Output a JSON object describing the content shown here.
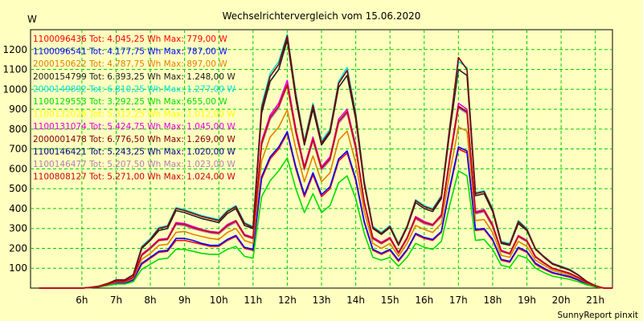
{
  "chart_data": {
    "type": "line",
    "title": "Wechselrichtervergleich vom 15.06.2020",
    "ylabel": "W",
    "xlabel": "",
    "xlim": [
      4.5,
      21.5
    ],
    "ylim": [
      0,
      1300
    ],
    "grid": true,
    "legend_position": "top-left",
    "x_ticks": [
      {
        "v": 6,
        "label": "6h"
      },
      {
        "v": 7,
        "label": "7h"
      },
      {
        "v": 8,
        "label": "8h"
      },
      {
        "v": 9,
        "label": "9h"
      },
      {
        "v": 10,
        "label": "10h"
      },
      {
        "v": 11,
        "label": "11h"
      },
      {
        "v": 12,
        "label": "12h"
      },
      {
        "v": 13,
        "label": "13h"
      },
      {
        "v": 14,
        "label": "14h"
      },
      {
        "v": 15,
        "label": "15h"
      },
      {
        "v": 16,
        "label": "16h"
      },
      {
        "v": 17,
        "label": "17h"
      },
      {
        "v": 18,
        "label": "18h"
      },
      {
        "v": 19,
        "label": "19h"
      },
      {
        "v": 20,
        "label": "20h"
      },
      {
        "v": 21,
        "label": "21h"
      }
    ],
    "y_ticks": [
      {
        "v": 100,
        "label": "100"
      },
      {
        "v": 200,
        "label": "200"
      },
      {
        "v": 300,
        "label": "300"
      },
      {
        "v": 400,
        "label": "400"
      },
      {
        "v": 500,
        "label": "500"
      },
      {
        "v": 600,
        "label": "600"
      },
      {
        "v": 700,
        "label": "700"
      },
      {
        "v": 800,
        "label": "800"
      },
      {
        "v": 900,
        "label": "900"
      },
      {
        "v": 1000,
        "label": "1000"
      },
      {
        "v": 1100,
        "label": "1100"
      },
      {
        "v": 1200,
        "label": "1200"
      }
    ],
    "x": [
      4.75,
      5.0,
      5.25,
      5.5,
      5.75,
      6.0,
      6.25,
      6.5,
      6.75,
      7.0,
      7.25,
      7.5,
      7.75,
      8.0,
      8.25,
      8.5,
      8.75,
      9.0,
      9.25,
      9.5,
      9.75,
      10.0,
      10.25,
      10.5,
      10.75,
      11.0,
      11.25,
      11.5,
      11.75,
      12.0,
      12.25,
      12.5,
      12.75,
      13.0,
      13.25,
      13.5,
      13.75,
      14.0,
      14.25,
      14.5,
      14.75,
      15.0,
      15.25,
      15.5,
      15.75,
      16.0,
      16.25,
      16.5,
      16.75,
      17.0,
      17.25,
      17.5,
      17.75,
      18.0,
      18.25,
      18.5,
      18.75,
      19.0,
      19.25,
      19.5,
      19.75,
      20.0,
      20.25,
      20.5,
      20.75,
      21.0,
      21.25,
      21.5
    ],
    "series": [
      {
        "legend": "1100096436 Tot: 4.045,25 Wh Max: 779,00 W",
        "color": "#ff0000",
        "values": [
          0,
          0,
          0,
          0,
          0,
          0,
          3,
          7,
          14,
          25,
          25,
          40,
          120,
          150,
          180,
          185,
          240,
          240,
          230,
          220,
          210,
          210,
          240,
          260,
          200,
          190,
          550,
          650,
          700,
          779,
          600,
          460,
          570,
          460,
          500,
          640,
          680,
          540,
          330,
          190,
          170,
          190,
          135,
          190,
          270,
          250,
          240,
          280,
          500,
          700,
          680,
          290,
          295,
          240,
          140,
          130,
          200,
          180,
          120,
          95,
          75,
          65,
          55,
          40,
          20,
          8,
          0,
          0
        ]
      },
      {
        "legend": "1100096541 Tot: 4.177,75 Wh Max: 787,00 W",
        "color": "#0000ff",
        "values": [
          0,
          0,
          0,
          0,
          0,
          0,
          3,
          7,
          15,
          26,
          26,
          42,
          125,
          155,
          185,
          190,
          250,
          250,
          240,
          225,
          215,
          215,
          245,
          265,
          205,
          195,
          560,
          660,
          710,
          787,
          610,
          470,
          580,
          470,
          510,
          650,
          690,
          550,
          335,
          195,
          175,
          195,
          140,
          195,
          275,
          255,
          245,
          285,
          510,
          710,
          690,
          295,
          300,
          245,
          145,
          135,
          205,
          185,
          125,
          100,
          78,
          68,
          58,
          42,
          21,
          8,
          0,
          0
        ]
      },
      {
        "legend": "2000150622 Tot: 4.787,75 Wh Max: 897,00 W",
        "color": "#e08000",
        "values": [
          0,
          0,
          0,
          0,
          0,
          0,
          3,
          8,
          17,
          30,
          30,
          48,
          145,
          175,
          215,
          220,
          280,
          285,
          270,
          260,
          250,
          245,
          280,
          300,
          240,
          225,
          640,
          760,
          810,
          897,
          700,
          535,
          665,
          535,
          580,
          745,
          790,
          630,
          385,
          225,
          200,
          225,
          160,
          225,
          315,
          295,
          280,
          325,
          580,
          810,
          790,
          340,
          345,
          280,
          165,
          155,
          235,
          210,
          140,
          115,
          88,
          78,
          66,
          48,
          24,
          9,
          0,
          0
        ]
      },
      {
        "legend": "2000154799 Tot: 6.393,25 Wh Max: 1.248,00 W",
        "color": "#202020",
        "values": [
          0,
          0,
          0,
          0,
          0,
          0,
          4,
          10,
          22,
          40,
          40,
          65,
          200,
          240,
          290,
          300,
          390,
          380,
          365,
          350,
          340,
          330,
          375,
          400,
          315,
          300,
          880,
          1040,
          1100,
          1248,
          950,
          720,
          900,
          720,
          780,
          1010,
          1070,
          850,
          520,
          300,
          270,
          305,
          215,
          305,
          430,
          400,
          385,
          450,
          790,
          1100,
          1070,
          465,
          475,
          385,
          225,
          215,
          325,
          290,
          195,
          155,
          120,
          105,
          90,
          65,
          32,
          12,
          0,
          0
        ]
      },
      {
        "legend": "2000149892 Tot: 6.810,25 Wh Max: 1.277,00 W",
        "color": "#00e0e0",
        "values": [
          0,
          0,
          0,
          0,
          0,
          0,
          4,
          10,
          23,
          42,
          42,
          68,
          210,
          250,
          305,
          315,
          405,
          395,
          380,
          365,
          355,
          345,
          390,
          415,
          330,
          310,
          920,
          1080,
          1140,
          1277,
          980,
          740,
          930,
          740,
          800,
          1040,
          1110,
          880,
          540,
          310,
          280,
          315,
          225,
          315,
          445,
          415,
          400,
          465,
          820,
          1140,
          1110,
          480,
          490,
          400,
          235,
          225,
          340,
          300,
          200,
          160,
          125,
          110,
          95,
          68,
          34,
          13,
          0,
          0
        ]
      },
      {
        "legend": "1100129553 Tot: 3.292,25 Wh Max: 655,00 W",
        "color": "#00dd00",
        "values": [
          0,
          0,
          0,
          0,
          0,
          0,
          2,
          6,
          12,
          20,
          20,
          32,
          95,
          120,
          145,
          150,
          195,
          195,
          185,
          175,
          170,
          170,
          195,
          210,
          160,
          150,
          460,
          540,
          590,
          655,
          500,
          380,
          475,
          380,
          415,
          530,
          565,
          450,
          275,
          155,
          140,
          155,
          110,
          155,
          225,
          205,
          195,
          235,
          420,
          590,
          565,
          240,
          245,
          195,
          115,
          105,
          165,
          150,
          100,
          78,
          60,
          52,
          44,
          32,
          16,
          6,
          0,
          0
        ]
      },
      {
        "legend": "1100132026 Tot: 5.312,25 Wh Max: 1.012,00 W",
        "color": "#ffff00",
        "values": [
          0,
          0,
          0,
          0,
          0,
          0,
          3,
          8,
          18,
          33,
          33,
          54,
          165,
          200,
          240,
          245,
          320,
          315,
          300,
          290,
          280,
          275,
          310,
          335,
          265,
          250,
          720,
          850,
          910,
          1012,
          780,
          595,
          740,
          595,
          645,
          830,
          880,
          700,
          425,
          250,
          225,
          250,
          175,
          250,
          350,
          325,
          315,
          360,
          645,
          910,
          880,
          375,
          385,
          310,
          185,
          170,
          260,
          235,
          155,
          125,
          97,
          86,
          73,
          53,
          26,
          10,
          0,
          0
        ]
      },
      {
        "legend": "1100131074 Tot: 5.424,75 Wh Max: 1.045,00 W",
        "color": "#e000e0",
        "values": [
          0,
          0,
          0,
          0,
          0,
          0,
          3,
          8,
          18,
          34,
          34,
          55,
          170,
          205,
          245,
          250,
          330,
          325,
          310,
          295,
          285,
          280,
          320,
          340,
          270,
          255,
          740,
          870,
          930,
          1045,
          800,
          610,
          760,
          610,
          660,
          850,
          900,
          720,
          435,
          255,
          230,
          255,
          180,
          255,
          360,
          335,
          320,
          370,
          660,
          930,
          900,
          385,
          395,
          320,
          190,
          175,
          265,
          240,
          160,
          128,
          100,
          88,
          75,
          54,
          27,
          10,
          0,
          0
        ]
      },
      {
        "legend": "2000001478 Tot: 6.776,50 Wh Max: 1.269,00 W",
        "color": "#800000",
        "values": [
          0,
          0,
          0,
          0,
          0,
          0,
          4,
          10,
          23,
          41,
          41,
          67,
          205,
          245,
          300,
          310,
          400,
          390,
          375,
          360,
          350,
          340,
          385,
          410,
          325,
          305,
          905,
          1065,
          1125,
          1269,
          970,
          730,
          920,
          730,
          790,
          1030,
          1095,
          870,
          530,
          305,
          275,
          310,
          220,
          310,
          440,
          410,
          395,
          460,
          810,
          1160,
          1100,
          475,
          485,
          395,
          230,
          220,
          335,
          295,
          198,
          158,
          123,
          108,
          92,
          66,
          33,
          12,
          0,
          0
        ]
      },
      {
        "legend": "1100146421 Tot: 5.243,25 Wh Max: 1.020,00 W",
        "color": "#000080",
        "values": [
          0,
          0,
          0,
          0,
          0,
          0,
          3,
          8,
          18,
          33,
          33,
          54,
          165,
          200,
          240,
          245,
          322,
          318,
          302,
          290,
          280,
          275,
          312,
          335,
          265,
          250,
          725,
          855,
          912,
          1020,
          785,
          600,
          745,
          600,
          648,
          835,
          885,
          705,
          428,
          250,
          225,
          250,
          176,
          250,
          352,
          327,
          316,
          362,
          648,
          912,
          885,
          377,
          387,
          312,
          186,
          172,
          260,
          236,
          156,
          126,
          98,
          86,
          73,
          53,
          26,
          10,
          0,
          0
        ]
      },
      {
        "legend": "1100146477 Tot: 5.207,50 Wh Max: 1.023,00 W",
        "color": "#b080b0",
        "values": [
          0,
          0,
          0,
          0,
          0,
          0,
          3,
          8,
          17,
          32,
          32,
          53,
          163,
          198,
          238,
          243,
          318,
          314,
          298,
          287,
          277,
          272,
          308,
          331,
          262,
          247,
          718,
          848,
          905,
          1023,
          778,
          594,
          738,
          594,
          642,
          828,
          878,
          698,
          424,
          247,
          222,
          247,
          174,
          247,
          348,
          323,
          312,
          358,
          642,
          905,
          878,
          373,
          383,
          308,
          184,
          170,
          257,
          233,
          154,
          124,
          97,
          85,
          72,
          52,
          26,
          10,
          0,
          0
        ]
      },
      {
        "legend": "1100808127 Tot: 5.271,00 Wh Max: 1.024,00 W",
        "color": "#cc0000",
        "values": [
          0,
          0,
          0,
          0,
          0,
          0,
          3,
          8,
          18,
          33,
          33,
          54,
          166,
          201,
          241,
          246,
          324,
          320,
          304,
          292,
          282,
          277,
          314,
          337,
          266,
          251,
          728,
          858,
          916,
          1024,
          788,
          602,
          748,
          602,
          651,
          838,
          888,
          708,
          430,
          251,
          226,
          251,
          177,
          251,
          354,
          329,
          318,
          364,
          651,
          916,
          888,
          379,
          389,
          314,
          187,
          173,
          261,
          237,
          157,
          127,
          98,
          87,
          74,
          53,
          27,
          10,
          0,
          0
        ]
      }
    ]
  },
  "footer": "SunnyReport pinxit"
}
